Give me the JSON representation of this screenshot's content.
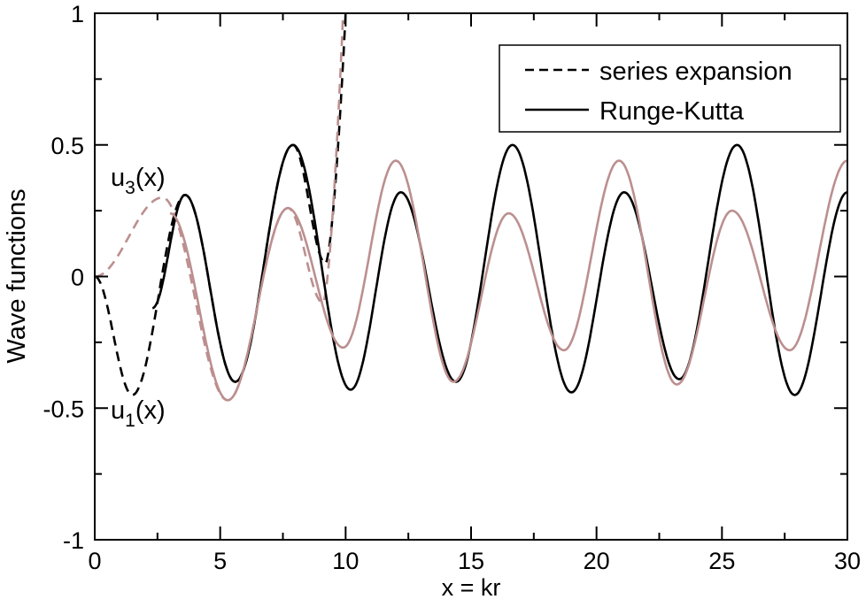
{
  "chart_data": {
    "type": "line",
    "title": "",
    "xlabel": "x = kr",
    "ylabel": "Wave functions",
    "xlim": [
      0,
      30
    ],
    "ylim": [
      -1,
      1
    ],
    "xticks": [
      "0",
      "5",
      "10",
      "15",
      "20",
      "25",
      "30"
    ],
    "xtick_values": [
      0,
      5,
      10,
      15,
      20,
      25,
      30
    ],
    "yticks": [
      "-1",
      "-0.5",
      "0",
      "0.5",
      "1"
    ],
    "ytick_values": [
      -1,
      -0.5,
      0,
      0.5,
      1
    ],
    "grid": false,
    "legend": {
      "placement": "top-right",
      "entries": [
        {
          "label": "series expansion",
          "style": "dashed"
        },
        {
          "label": "Runge-Kutta",
          "style": "solid"
        }
      ]
    },
    "annotations": [
      {
        "base": "u",
        "sub": "3",
        "rest": "(x)",
        "x": 0.7,
        "y": 0.35
      },
      {
        "base": "u",
        "sub": "1",
        "rest": "(x)",
        "x": 0.7,
        "y": -0.52
      }
    ],
    "colors": {
      "u1": "#000000",
      "u3": "#bc8f8f"
    },
    "series": [
      {
        "name": "u1(x) series expansion",
        "style": "dashed",
        "color": "#000000",
        "extrema": [
          [
            0,
            0
          ],
          [
            1.5,
            -0.45
          ],
          [
            3.6,
            0.31
          ],
          [
            5.6,
            -0.4
          ],
          [
            7.9,
            0.5
          ],
          [
            9.2,
            0.05
          ],
          [
            10.0,
            1.0
          ]
        ]
      },
      {
        "name": "u3(x) series expansion",
        "style": "dashed",
        "color": "#bc8f8f",
        "extrema": [
          [
            0,
            0
          ],
          [
            2.7,
            0.3
          ],
          [
            5.3,
            -0.47
          ],
          [
            7.7,
            0.26
          ],
          [
            9.1,
            -0.1
          ],
          [
            9.9,
            1.0
          ]
        ]
      },
      {
        "name": "u1(x) Runge-Kutta",
        "style": "solid",
        "color": "#000000",
        "extrema": [
          [
            2.3,
            -0.12
          ],
          [
            3.6,
            0.31
          ],
          [
            5.6,
            -0.4
          ],
          [
            7.9,
            0.5
          ],
          [
            10.2,
            -0.43
          ],
          [
            12.2,
            0.32
          ],
          [
            14.4,
            -0.4
          ],
          [
            16.65,
            0.5
          ],
          [
            19.0,
            -0.44
          ],
          [
            21.1,
            0.32
          ],
          [
            23.3,
            -0.39
          ],
          [
            25.6,
            0.5
          ],
          [
            27.9,
            -0.45
          ],
          [
            30.0,
            0.32
          ]
        ]
      },
      {
        "name": "u3(x) Runge-Kutta",
        "style": "solid",
        "color": "#bc8f8f",
        "extrema": [
          [
            3.0,
            0.24
          ],
          [
            5.3,
            -0.47
          ],
          [
            7.7,
            0.26
          ],
          [
            9.9,
            -0.27
          ],
          [
            12.0,
            0.44
          ],
          [
            14.3,
            -0.4
          ],
          [
            16.5,
            0.24
          ],
          [
            18.7,
            -0.28
          ],
          [
            20.9,
            0.44
          ],
          [
            23.2,
            -0.41
          ],
          [
            25.4,
            0.25
          ],
          [
            27.7,
            -0.28
          ],
          [
            30.0,
            0.44
          ]
        ]
      }
    ]
  }
}
